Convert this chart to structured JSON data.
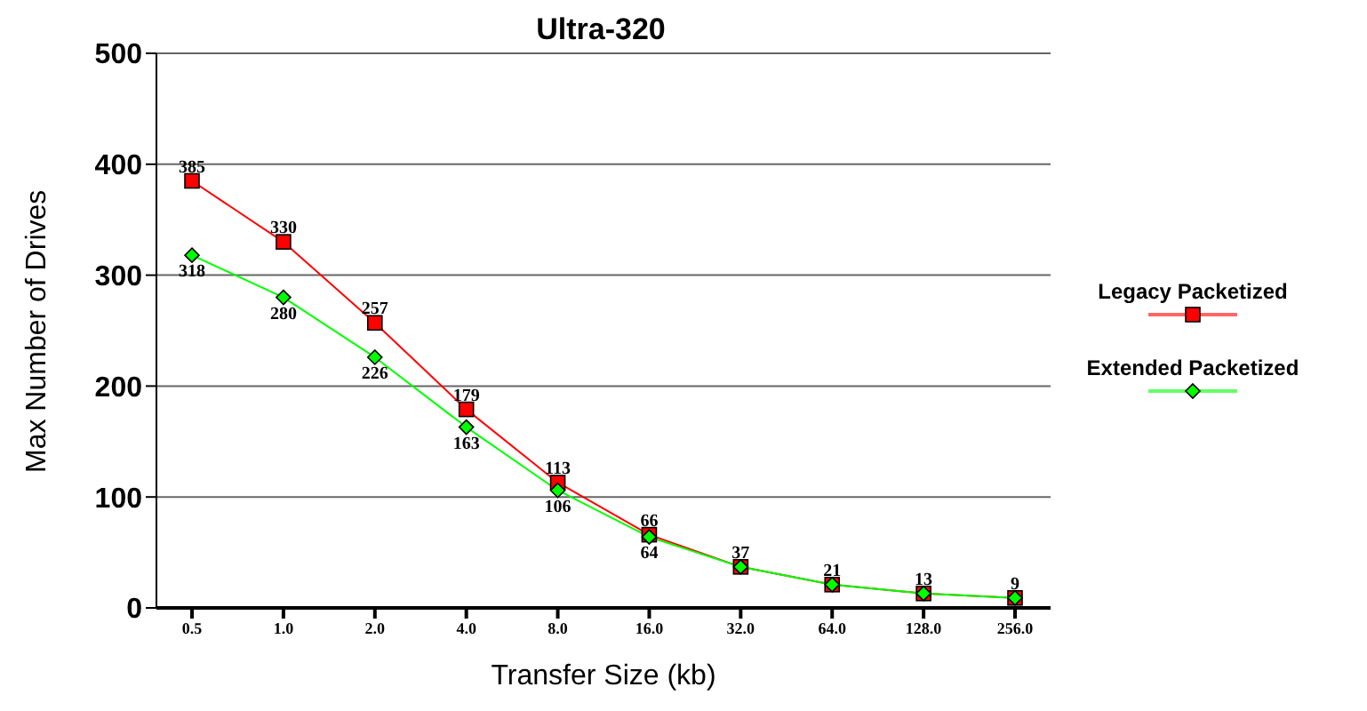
{
  "chart_data": {
    "type": "line",
    "title": "Ultra-320",
    "xlabel": "Transfer Size (kb)",
    "ylabel": "Max Number of Drives",
    "categories": [
      "0.5",
      "1.0",
      "2.0",
      "4.0",
      "8.0",
      "16.0",
      "32.0",
      "64.0",
      "128.0",
      "256.0"
    ],
    "series": [
      {
        "name": "Legacy Packetized",
        "color": "#ff0000",
        "marker": "square",
        "values": [
          385,
          330,
          257,
          179,
          113,
          66,
          37,
          21,
          13,
          9
        ],
        "value_labels": [
          "385",
          "330",
          "257",
          "179",
          "113",
          "66",
          "37",
          "21",
          "13",
          "9"
        ]
      },
      {
        "name": "Extended Packetized",
        "color": "#00ff00",
        "marker": "diamond",
        "values": [
          318,
          280,
          226,
          163,
          106,
          64,
          37,
          21,
          13,
          9
        ],
        "value_labels": [
          "318",
          "280",
          "226",
          "163",
          "106",
          "64",
          null,
          null,
          null,
          null
        ]
      }
    ],
    "ylim": [
      0,
      500
    ],
    "yticks": [
      0,
      100,
      200,
      300,
      400,
      500
    ],
    "grid": "y",
    "legend": "right"
  }
}
